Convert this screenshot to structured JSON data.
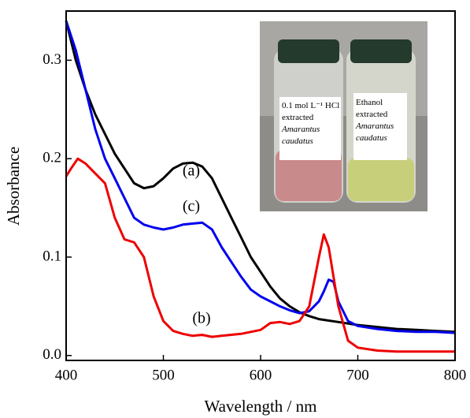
{
  "chart_data": {
    "type": "line",
    "xlabel": "Wavelength / nm",
    "ylabel": "Absorbance",
    "xlim": [
      400,
      800
    ],
    "xticks": [
      400,
      500,
      600,
      700,
      800
    ],
    "ylim": [
      -0.005,
      0.35
    ],
    "yticks": [
      {
        "value": 0,
        "label": "0.0"
      },
      0.1,
      0.2,
      0.3
    ],
    "series": [
      {
        "color": "#000000",
        "x": [
          400,
          410,
          420,
          430,
          440,
          450,
          460,
          470,
          480,
          490,
          500,
          510,
          520,
          530,
          540,
          550,
          560,
          570,
          580,
          590,
          600,
          610,
          620,
          630,
          640,
          650,
          660,
          680,
          700,
          720,
          740,
          760,
          780,
          800
        ],
        "values": [
          0.34,
          0.3,
          0.27,
          0.245,
          0.225,
          0.205,
          0.19,
          0.175,
          0.17,
          0.172,
          0.18,
          0.19,
          0.195,
          0.196,
          0.192,
          0.18,
          0.16,
          0.14,
          0.12,
          0.1,
          0.085,
          0.07,
          0.058,
          0.05,
          0.044,
          0.04,
          0.037,
          0.034,
          0.031,
          0.029,
          0.027,
          0.026,
          0.025,
          0.024
        ]
      },
      {
        "color": "#0000ee",
        "x": [
          400,
          410,
          420,
          430,
          440,
          450,
          460,
          470,
          480,
          490,
          500,
          510,
          520,
          530,
          540,
          550,
          560,
          570,
          580,
          590,
          600,
          610,
          620,
          630,
          640,
          650,
          660,
          665,
          670,
          675,
          680,
          690,
          700,
          720,
          740,
          760,
          780,
          800
        ],
        "values": [
          0.34,
          0.31,
          0.27,
          0.23,
          0.2,
          0.18,
          0.16,
          0.14,
          0.133,
          0.13,
          0.128,
          0.13,
          0.133,
          0.134,
          0.135,
          0.128,
          0.11,
          0.095,
          0.08,
          0.067,
          0.06,
          0.055,
          0.05,
          0.046,
          0.043,
          0.045,
          0.055,
          0.065,
          0.077,
          0.075,
          0.055,
          0.035,
          0.03,
          0.027,
          0.025,
          0.024,
          0.024,
          0.023
        ]
      },
      {
        "color": "#ee0000",
        "x": [
          400,
          405,
          412,
          420,
          430,
          440,
          450,
          460,
          470,
          480,
          490,
          500,
          510,
          520,
          530,
          540,
          550,
          560,
          580,
          600,
          610,
          620,
          630,
          640,
          650,
          660,
          665,
          670,
          680,
          690,
          700,
          720,
          740,
          760,
          780,
          800
        ],
        "values": [
          0.182,
          0.19,
          0.2,
          0.195,
          0.185,
          0.175,
          0.14,
          0.118,
          0.115,
          0.1,
          0.06,
          0.035,
          0.025,
          0.022,
          0.02,
          0.021,
          0.019,
          0.02,
          0.022,
          0.026,
          0.033,
          0.034,
          0.032,
          0.035,
          0.05,
          0.1,
          0.123,
          0.11,
          0.05,
          0.015,
          0.008,
          0.005,
          0.004,
          0.004,
          0.004,
          0.004
        ]
      }
    ],
    "annotations": [
      "(a)",
      "(b)",
      "(c)"
    ],
    "inset": {
      "left_label": [
        "0.1 mol L⁻¹ HCl",
        "extracted",
        "Amarantus",
        "caudatus"
      ],
      "right_label": [
        "Ethanol",
        "extracted",
        "Amarantus",
        "caudatus"
      ]
    }
  }
}
